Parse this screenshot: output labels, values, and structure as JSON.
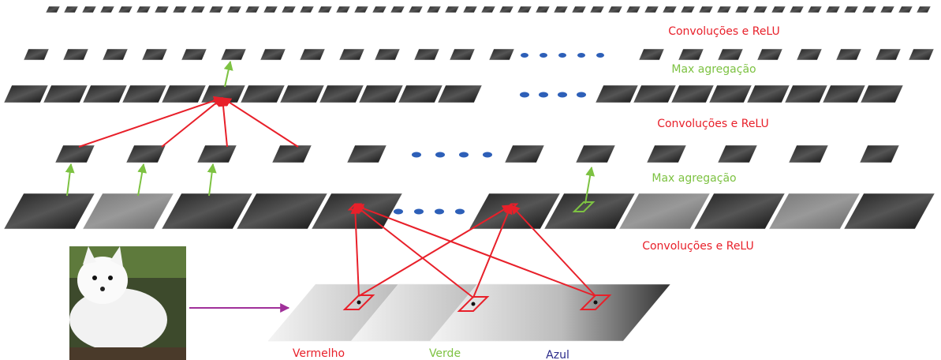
{
  "layers": [
    {
      "label": "Convoluções e ReLU"
    },
    {
      "label": "Max agregação"
    },
    {
      "label": "Convoluções e ReLU"
    },
    {
      "label": "Max agregação"
    },
    {
      "label": "Convoluções e ReLU"
    }
  ],
  "channels": [
    "Vermelho",
    "Verde",
    "Azul"
  ]
}
